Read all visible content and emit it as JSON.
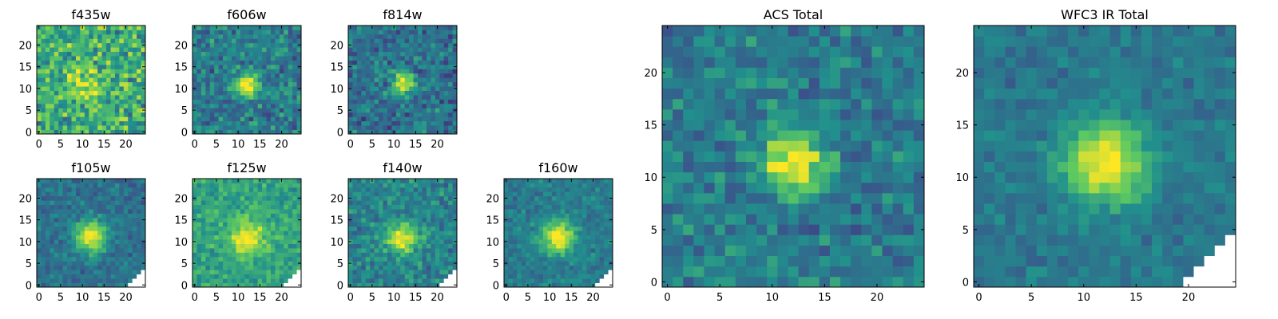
{
  "figure": {
    "colormap": "viridis",
    "colormap_stops": [
      "#440154",
      "#3b528b",
      "#21908d",
      "#5dc962",
      "#fde725"
    ],
    "masked_color": "#ffffff",
    "axis_color": "#000000"
  },
  "chart_data": [
    {
      "type": "heatmap",
      "title": "f435w",
      "xlabel": "",
      "ylabel": "",
      "xlim": [
        0,
        24
      ],
      "ylim": [
        0,
        24
      ],
      "xticks": [
        "0",
        "5",
        "10",
        "15",
        "20"
      ],
      "yticks": [
        "0",
        "5",
        "10",
        "15",
        "20"
      ],
      "grid": false,
      "noise": 0.34,
      "peak": 0.3,
      "source_x": 10,
      "source_y": 11,
      "source_sigma": 2.8,
      "background": 0.62,
      "mask_bottom_right": 0
    },
    {
      "type": "heatmap",
      "title": "f606w",
      "xlabel": "",
      "ylabel": "",
      "xlim": [
        0,
        24
      ],
      "ylim": [
        0,
        24
      ],
      "xticks": [
        "0",
        "5",
        "10",
        "15",
        "20"
      ],
      "yticks": [
        "0",
        "5",
        "10",
        "15",
        "20"
      ],
      "grid": false,
      "noise": 0.24,
      "peak": 0.62,
      "source_x": 12,
      "source_y": 11,
      "source_sigma": 1.8,
      "background": 0.42,
      "mask_bottom_right": 0
    },
    {
      "type": "heatmap",
      "title": "f814w",
      "xlabel": "",
      "ylabel": "",
      "xlim": [
        0,
        24
      ],
      "ylim": [
        0,
        24
      ],
      "xticks": [
        "0",
        "5",
        "10",
        "15",
        "20"
      ],
      "yticks": [
        "0",
        "5",
        "10",
        "15",
        "20"
      ],
      "grid": false,
      "noise": 0.24,
      "peak": 0.6,
      "source_x": 12,
      "source_y": 11,
      "source_sigma": 1.7,
      "background": 0.38,
      "mask_bottom_right": 0
    },
    {
      "type": "heatmap",
      "title": "f105w",
      "xlabel": "",
      "ylabel": "",
      "xlim": [
        0,
        24
      ],
      "ylim": [
        0,
        24
      ],
      "xticks": [
        "0",
        "5",
        "10",
        "15",
        "20"
      ],
      "yticks": [
        "0",
        "5",
        "10",
        "15",
        "20"
      ],
      "grid": false,
      "noise": 0.16,
      "peak": 0.62,
      "source_x": 12,
      "source_y": 11,
      "source_sigma": 2.6,
      "background": 0.38,
      "mask_bottom_right": 4
    },
    {
      "type": "heatmap",
      "title": "f125w",
      "xlabel": "",
      "ylabel": "",
      "xlim": [
        0,
        24
      ],
      "ylim": [
        0,
        24
      ],
      "xticks": [
        "0",
        "5",
        "10",
        "15",
        "20"
      ],
      "yticks": [
        "0",
        "5",
        "10",
        "15",
        "20"
      ],
      "grid": false,
      "noise": 0.18,
      "peak": 0.42,
      "source_x": 12,
      "source_y": 11,
      "source_sigma": 3.0,
      "background": 0.58,
      "mask_bottom_right": 4
    },
    {
      "type": "heatmap",
      "title": "f140w",
      "xlabel": "",
      "ylabel": "",
      "xlim": [
        0,
        24
      ],
      "ylim": [
        0,
        24
      ],
      "xticks": [
        "0",
        "5",
        "10",
        "15",
        "20"
      ],
      "yticks": [
        "0",
        "5",
        "10",
        "15",
        "20"
      ],
      "grid": false,
      "noise": 0.2,
      "peak": 0.56,
      "source_x": 12,
      "source_y": 11,
      "source_sigma": 2.5,
      "background": 0.45,
      "mask_bottom_right": 4
    },
    {
      "type": "heatmap",
      "title": "f160w",
      "xlabel": "",
      "ylabel": "",
      "xlim": [
        0,
        24
      ],
      "ylim": [
        0,
        24
      ],
      "xticks": [
        "0",
        "5",
        "10",
        "15",
        "20"
      ],
      "yticks": [
        "0",
        "5",
        "10",
        "15",
        "20"
      ],
      "grid": false,
      "noise": 0.14,
      "peak": 0.6,
      "source_x": 12,
      "source_y": 11,
      "source_sigma": 2.6,
      "background": 0.42,
      "mask_bottom_right": 4
    },
    {
      "type": "heatmap",
      "title": "ACS Total",
      "xlabel": "",
      "ylabel": "",
      "xlim": [
        0,
        24
      ],
      "ylim": [
        0,
        24
      ],
      "xticks": [
        "0",
        "5",
        "10",
        "15",
        "20"
      ],
      "yticks": [
        "0",
        "5",
        "10",
        "15",
        "20"
      ],
      "grid": false,
      "noise": 0.2,
      "peak": 0.62,
      "source_x": 12,
      "source_y": 11.5,
      "source_sigma": 2.0,
      "background": 0.42,
      "mask_bottom_right": 0
    },
    {
      "type": "heatmap",
      "title": "WFC3 IR Total",
      "xlabel": "",
      "ylabel": "",
      "xlim": [
        0,
        24
      ],
      "ylim": [
        0,
        24
      ],
      "xticks": [
        "0",
        "5",
        "10",
        "15",
        "20"
      ],
      "yticks": [
        "0",
        "5",
        "10",
        "15",
        "20"
      ],
      "grid": false,
      "noise": 0.12,
      "peak": 0.62,
      "source_x": 12,
      "source_y": 11.5,
      "source_sigma": 2.8,
      "background": 0.4,
      "mask_bottom_right": 5
    }
  ]
}
